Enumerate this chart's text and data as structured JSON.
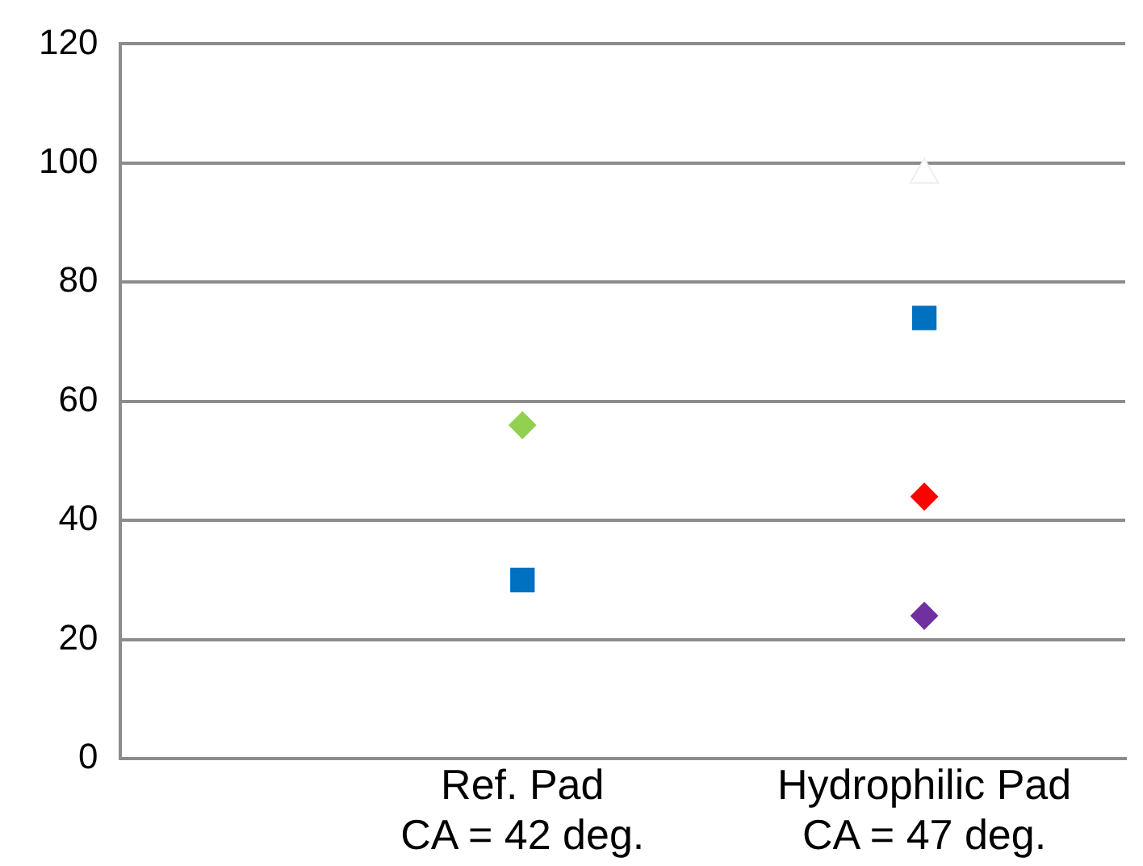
{
  "chart_data": {
    "type": "scatter",
    "categories": [
      null,
      null,
      "Ref. Pad\nCA = 42 deg.",
      null,
      "Hydrophilic Pad\nCA = 47 deg.",
      null
    ],
    "series": [
      {
        "color": "#92d050",
        "marker": "diamond",
        "values": [
          null,
          null,
          56,
          null,
          null,
          null
        ]
      },
      {
        "color": "#0070c0",
        "marker": "square",
        "values": [
          null,
          null,
          30,
          null,
          74,
          null
        ]
      },
      {
        "color": "#ff0000",
        "marker": "diamond",
        "values": [
          null,
          null,
          null,
          null,
          44,
          null
        ]
      },
      {
        "color": "#7030a0",
        "marker": "diamond",
        "values": [
          null,
          null,
          null,
          null,
          24,
          null
        ]
      },
      {
        "color": "#ffffff",
        "marker": "triangle",
        "values": [
          null,
          null,
          null,
          null,
          98,
          null
        ]
      }
    ],
    "ylim": [
      0,
      120
    ],
    "yticks": [
      0,
      20,
      40,
      60,
      80,
      100,
      120
    ],
    "grid": "y",
    "legend": false
  }
}
